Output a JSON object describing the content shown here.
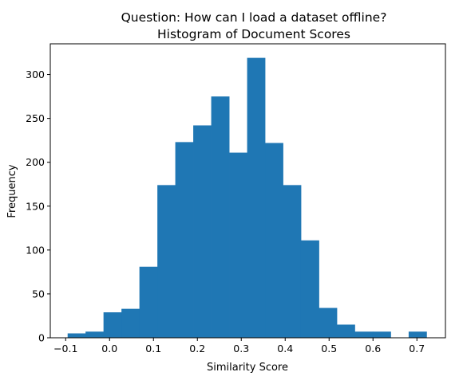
{
  "chart_data": {
    "type": "bar",
    "title_line1": "Question: How can I load a dataset offline?",
    "title_line2": "Histogram of Document Scores",
    "xlabel": "Similarity Score",
    "ylabel": "Frequency",
    "xlim": [
      -0.135,
      0.765
    ],
    "ylim": [
      0,
      335
    ],
    "bar_color": "#1f77b4",
    "bin_edges": [
      -0.0955,
      -0.0547,
      -0.0138,
      0.0271,
      0.068,
      0.1089,
      0.1497,
      0.1906,
      0.2315,
      0.2724,
      0.3133,
      0.3541,
      0.395,
      0.4359,
      0.4768,
      0.5177,
      0.5585,
      0.5994,
      0.6403,
      0.6812,
      0.722
    ],
    "counts": [
      5,
      7,
      29,
      33,
      81,
      174,
      223,
      242,
      275,
      211,
      319,
      222,
      174,
      111,
      34,
      15,
      7,
      7,
      0,
      7
    ],
    "xticks": [
      {
        "value": -0.1,
        "label": "−0.1"
      },
      {
        "value": 0.0,
        "label": "0.0"
      },
      {
        "value": 0.1,
        "label": "0.1"
      },
      {
        "value": 0.2,
        "label": "0.2"
      },
      {
        "value": 0.3,
        "label": "0.3"
      },
      {
        "value": 0.4,
        "label": "0.4"
      },
      {
        "value": 0.5,
        "label": "0.5"
      },
      {
        "value": 0.6,
        "label": "0.6"
      },
      {
        "value": 0.7,
        "label": "0.7"
      }
    ],
    "yticks": [
      {
        "value": 0,
        "label": "0"
      },
      {
        "value": 50,
        "label": "50"
      },
      {
        "value": 100,
        "label": "100"
      },
      {
        "value": 150,
        "label": "150"
      },
      {
        "value": 200,
        "label": "200"
      },
      {
        "value": 250,
        "label": "250"
      },
      {
        "value": 300,
        "label": "300"
      }
    ]
  }
}
